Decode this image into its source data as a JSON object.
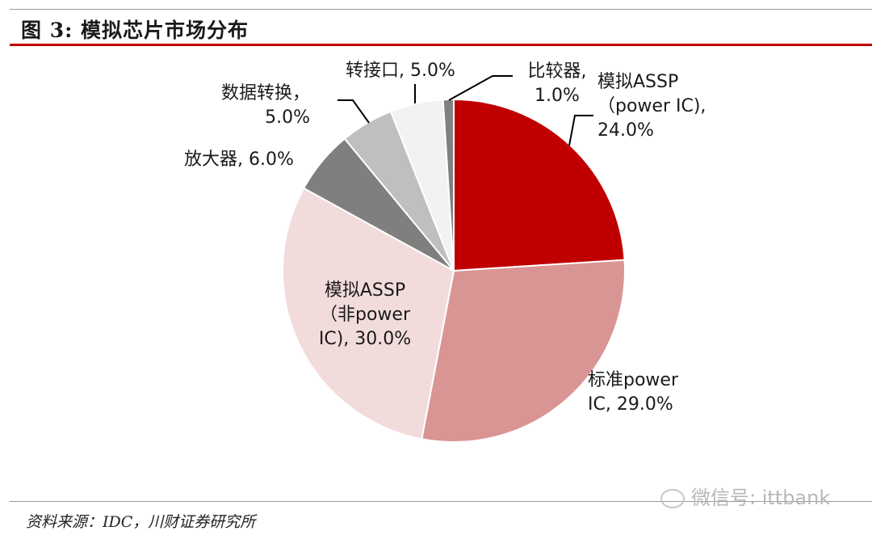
{
  "header": {
    "title": "图 3:   模拟芯片市场分布"
  },
  "footer": {
    "source": "资料来源：IDC，川财证券研究所",
    "watermark": "微信号: ittbank"
  },
  "chart_data": {
    "type": "pie",
    "title": "模拟芯片市场分布",
    "slices": [
      {
        "name": "模拟ASSP（power IC)",
        "value": 24.0,
        "color": "#c00000",
        "label": [
          "模拟ASSP",
          "（power IC),",
          "24.0%"
        ]
      },
      {
        "name": "标准power IC",
        "value": 29.0,
        "color": "#d99594",
        "label": [
          "标准power",
          "IC, 29.0%"
        ]
      },
      {
        "name": "模拟ASSP（非power IC)",
        "value": 30.0,
        "color": "#f2dcdb",
        "label": [
          "模拟ASSP",
          "（非power",
          "IC), 30.0%"
        ]
      },
      {
        "name": "放大器",
        "value": 6.0,
        "color": "#7f7f7f",
        "label": [
          "放大器, 6.0%"
        ]
      },
      {
        "name": "数据转换",
        "value": 5.0,
        "color": "#bfbfbf",
        "label": [
          "数据转换，",
          "5.0%"
        ]
      },
      {
        "name": "转接口",
        "value": 5.0,
        "color": "#f2f2f2",
        "label": [
          "转接口, 5.0%"
        ]
      },
      {
        "name": "比较器",
        "value": 1.0,
        "color": "#808080",
        "label": [
          "比较器,",
          "1.0%"
        ]
      }
    ]
  }
}
